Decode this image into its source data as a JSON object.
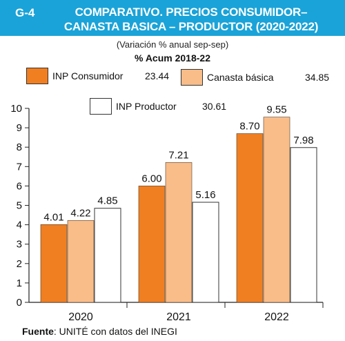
{
  "header": {
    "code": "G-4",
    "title_line1": "COMPARATIVO. PRECIOS CONSUMIDOR–",
    "title_line2": "CANASTA BASICA – PRODUCTOR (2020-2022)"
  },
  "subtitle": "(Variación % anual sep-sep)",
  "acum_label": "% Acum 2018-22",
  "legend": [
    {
      "label": "INP Consumidor",
      "value": "23.44"
    },
    {
      "label": "Canasta básica",
      "value": "34.85"
    },
    {
      "label": "INP Productor",
      "value": "30.61"
    }
  ],
  "source": {
    "bold": "Fuente",
    "text": ": UNITÉ con datos del INEGI"
  },
  "colors": {
    "header_bg": "#1aa3d8",
    "consumidor": "#f07f22",
    "canasta": "#f9bd8a",
    "productor": "#ffffff"
  },
  "chart_data": {
    "type": "bar",
    "categories": [
      "2020",
      "2021",
      "2022"
    ],
    "series": [
      {
        "name": "INP Consumidor",
        "values": [
          4.01,
          6.0,
          8.7
        ],
        "labels": [
          "4.01",
          "6.00",
          "8.70"
        ]
      },
      {
        "name": "Canasta básica",
        "values": [
          4.22,
          7.21,
          9.55
        ],
        "labels": [
          "4.22",
          "7.21",
          "9.55"
        ]
      },
      {
        "name": "INP Productor",
        "values": [
          4.85,
          5.16,
          7.98
        ],
        "labels": [
          "4.85",
          "5.16",
          "7.98"
        ]
      }
    ],
    "ylim": [
      0,
      10
    ],
    "yticks": [
      "0",
      "1",
      "2",
      "3",
      "4",
      "5",
      "6",
      "7",
      "8",
      "9",
      "10"
    ],
    "grid": false,
    "legend_position": "top"
  }
}
